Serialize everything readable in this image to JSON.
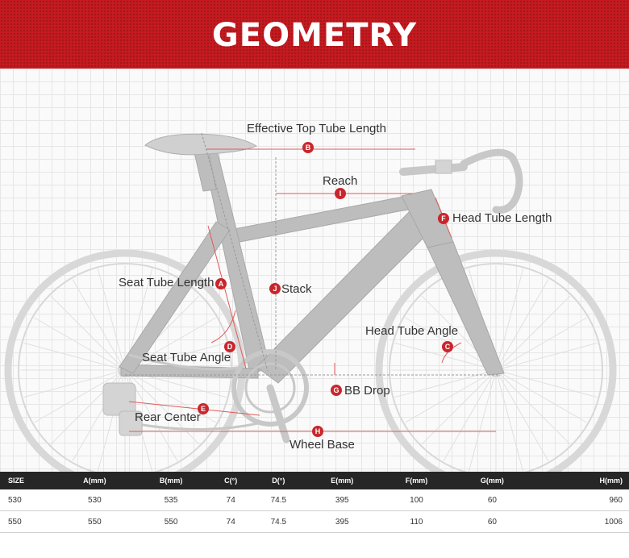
{
  "banner": {
    "title": "GEOMETRY"
  },
  "labels": {
    "effective_top_tube": "Effective Top Tube Length",
    "reach": "Reach",
    "head_tube_length": "Head Tube Length",
    "seat_tube_length": "Seat Tube Length",
    "stack": "Stack",
    "head_tube_angle": "Head Tube Angle",
    "seat_tube_angle": "Seat Tube Angle",
    "bb_drop": "BB Drop",
    "rear_center": "Rear Center",
    "wheel_base": "Wheel Base"
  },
  "badges": {
    "a": "A",
    "b": "B",
    "c": "C",
    "d": "D",
    "e": "E",
    "f": "F",
    "g": "G",
    "h": "H",
    "i": "I",
    "j": "J"
  },
  "colors": {
    "banner": "#c41a20",
    "badge": "#c9262c",
    "frame": "#b8b8b8",
    "table_header": "#262626"
  },
  "table": {
    "headers": [
      "SIZE",
      "A(mm)",
      "B(mm)",
      "C(°)",
      "D(°)",
      "E(mm)",
      "F(mm)",
      "G(mm)",
      "H(mm)"
    ],
    "rows": [
      [
        "530",
        "530",
        "535",
        "74",
        "74.5",
        "395",
        "100",
        "60",
        "960"
      ],
      [
        "550",
        "550",
        "550",
        "74",
        "74.5",
        "395",
        "110",
        "60",
        "1006"
      ]
    ]
  }
}
